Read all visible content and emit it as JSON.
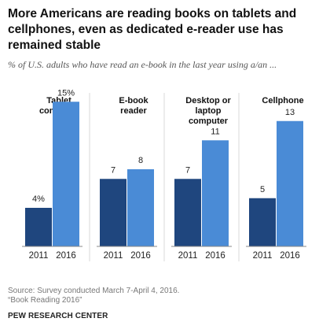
{
  "title": "More Americans are reading books on tablets and cellphones, even as dedicated e-reader use has remained stable",
  "subtitle": "% of U.S. adults who have read an e-book in the last year using a/an ...",
  "source_line1": "Source: Survey conducted March 7-April 4, 2016.",
  "source_line2": "“Book Reading 2016”",
  "brand": "PEW RESEARCH CENTER",
  "colors": {
    "y2011": "#1f467e",
    "y2016": "#4a8bd6",
    "divider": "#d9d9d9",
    "baseline": "#888888"
  },
  "chart_data": {
    "type": "bar",
    "categories": [
      "2011",
      "2016"
    ],
    "ylim": [
      0,
      16
    ],
    "panels": [
      {
        "label_lines": [
          "Tablet",
          "computer"
        ],
        "value_labels": [
          "4%",
          "15%"
        ],
        "values": [
          4,
          15
        ]
      },
      {
        "label_lines": [
          "E-book",
          "reader"
        ],
        "value_labels": [
          "7",
          "8"
        ],
        "values": [
          7,
          8
        ]
      },
      {
        "label_lines": [
          "Desktop or",
          "laptop",
          "computer"
        ],
        "value_labels": [
          "7",
          "11"
        ],
        "values": [
          7,
          11
        ]
      },
      {
        "label_lines": [
          "Cellphone"
        ],
        "value_labels": [
          "5",
          "13"
        ],
        "values": [
          5,
          13
        ]
      }
    ]
  }
}
